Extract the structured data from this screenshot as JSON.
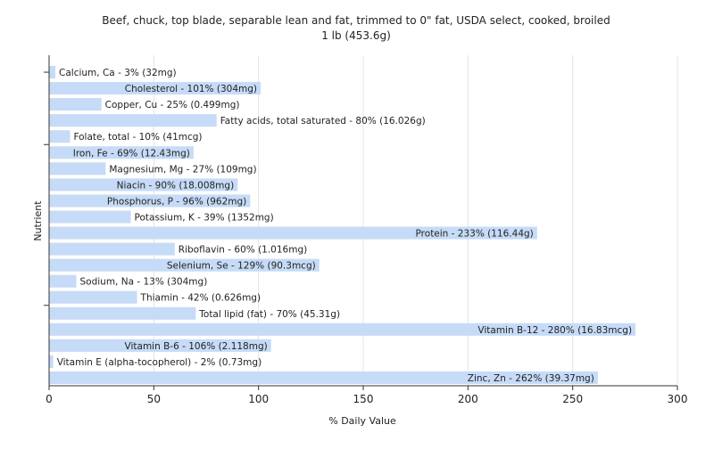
{
  "chart_data": {
    "type": "bar",
    "orientation": "horizontal",
    "title": "Beef, chuck, top blade, separable lean and fat, trimmed to 0\" fat, USDA select, cooked, broiled",
    "subtitle": "1 lb (453.6g)",
    "xlabel": "% Daily Value",
    "ylabel": "Nutrient",
    "xlim": [
      0,
      300
    ],
    "xticks": [
      0,
      50,
      100,
      150,
      200,
      250,
      300
    ],
    "grid": true,
    "bar_color": "#c6dbf7",
    "categories": [
      "Calcium, Ca",
      "Cholesterol",
      "Copper, Cu",
      "Fatty acids, total saturated",
      "Folate, total",
      "Iron, Fe",
      "Magnesium, Mg",
      "Niacin",
      "Phosphorus, P",
      "Potassium, K",
      "Protein",
      "Riboflavin",
      "Selenium, Se",
      "Sodium, Na",
      "Thiamin",
      "Total lipid (fat)",
      "Vitamin B-12",
      "Vitamin B-6",
      "Vitamin E (alpha-tocopherol)",
      "Zinc, Zn"
    ],
    "values": [
      3,
      101,
      25,
      80,
      10,
      69,
      27,
      90,
      96,
      39,
      233,
      60,
      129,
      13,
      42,
      70,
      280,
      106,
      2,
      262
    ],
    "labels": [
      "Calcium, Ca - 3% (32mg)",
      "Cholesterol - 101% (304mg)",
      "Copper, Cu - 25% (0.499mg)",
      "Fatty acids, total saturated - 80% (16.026g)",
      "Folate, total - 10% (41mcg)",
      "Iron, Fe - 69% (12.43mg)",
      "Magnesium, Mg - 27% (109mg)",
      "Niacin - 90% (18.008mg)",
      "Phosphorus, P - 96% (962mg)",
      "Potassium, K - 39% (1352mg)",
      "Protein - 233% (116.44g)",
      "Riboflavin - 60% (1.016mg)",
      "Selenium, Se - 129% (90.3mcg)",
      "Sodium, Na - 13% (304mg)",
      "Thiamin - 42% (0.626mg)",
      "Total lipid (fat) - 70% (45.31g)",
      "Vitamin B-12 - 280% (16.83mcg)",
      "Vitamin B-6 - 106% (2.118mg)",
      "Vitamin E (alpha-tocopherol) - 2% (0.73mg)",
      "Zinc, Zn - 262% (39.37mg)"
    ]
  }
}
